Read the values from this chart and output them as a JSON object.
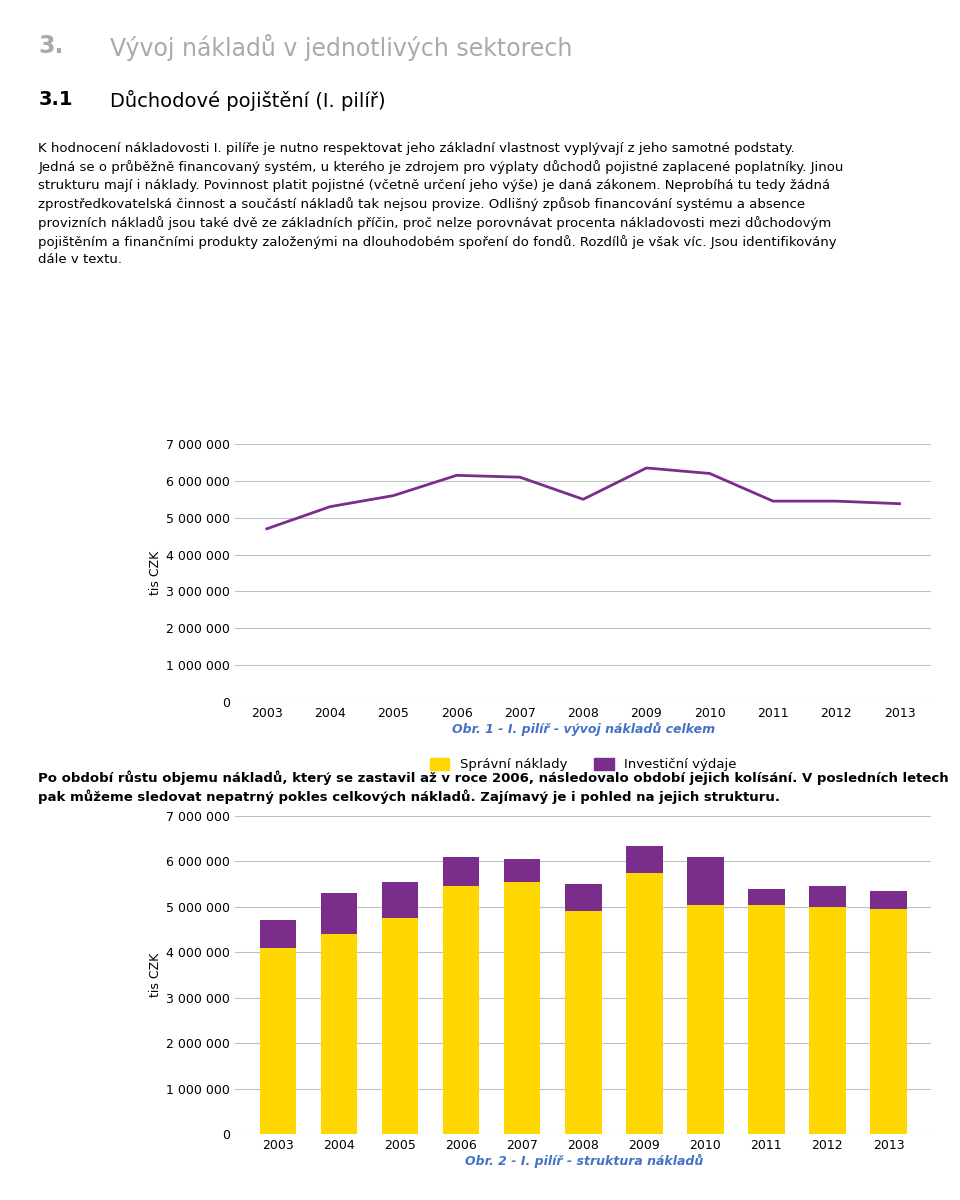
{
  "page_title_num": "3.",
  "page_title_text": "Vývoj nákladů v jednotlivých sektorech",
  "section_num": "3.1",
  "section_text": "Důchodové pojištění (I. pilíř)",
  "paragraph1": "K hodnocení nákladovosti I. pilíře je nutno respektovat jeho základní vlastnost vyplývají z jeho samotné podstaty. Jedná se o průběžně financovaný systém, u kterého je zdrojem pro výplaty důchodů pojistné zaplacené poplatníky. Jinou strukturu mají i náklady. Povinnost platit pojistné (včetně určení jeho výše) je daná zákonem. Neprobíhá tu tedy žádná zprostředkovatelská činnost a součástí nákladů tak nejsou provize. Odlišný způsob financování systému a absence provizních nákladů jsou také dvě ze základních příčin, proč nelze porovnávat procenta nákladovosti mezi důchodovým pojištěním a finančními produkty založenými na dlouhodobém spoření do fondů. Rozdílů je však víc. Jsou identifikovány dále v textu.",
  "paragraph2_line1": "Po období růstu objemu nákladů, který se zastavil až v roce 2006, následovalo období jejich kolísání. V posledních letech",
  "paragraph2_line2": "pak můžeme sledovat nepatrný pokles celkových nákladů. Zajímavý je i pohled na jejich strukturu.",
  "years": [
    2003,
    2004,
    2005,
    2006,
    2007,
    2008,
    2009,
    2010,
    2011,
    2012,
    2013
  ],
  "line_values": [
    4700000,
    5300000,
    5600000,
    6150000,
    6100000,
    5500000,
    6350000,
    6200000,
    5450000,
    5450000,
    5380000
  ],
  "line_color": "#7B2D8B",
  "line_width": 2.0,
  "chart1_ylabel": "tis CZK",
  "chart1_ylim": [
    0,
    7000000
  ],
  "chart1_yticks": [
    0,
    1000000,
    2000000,
    3000000,
    4000000,
    5000000,
    6000000,
    7000000
  ],
  "chart1_caption": "Obr. 1 - I. pilíř - vývoj nákladů celkem",
  "spravni_naklady": [
    4100000,
    4400000,
    4750000,
    5450000,
    5550000,
    4900000,
    5750000,
    5050000,
    5050000,
    5000000,
    4950000
  ],
  "investicni_vydaje": [
    600000,
    900000,
    800000,
    650000,
    500000,
    600000,
    600000,
    1050000,
    350000,
    450000,
    390000
  ],
  "bar_color_yellow": "#FFD700",
  "bar_color_purple": "#7B2D8B",
  "chart2_ylabel": "tis CZK",
  "chart2_ylim": [
    0,
    7000000
  ],
  "chart2_yticks": [
    0,
    1000000,
    2000000,
    3000000,
    4000000,
    5000000,
    6000000,
    7000000
  ],
  "chart2_caption": "Obr. 2 - I. pilíř - struktura nákladů",
  "legend_spravni": "Správní náklady",
  "legend_investicni": "Investiční výdaje",
  "caption_color": "#4472C4",
  "grid_color": "#C0C0C0",
  "bg_color": "#FFFFFF",
  "title_gray": "#AAAAAA",
  "body_fontsize": 9.5,
  "bold_fontsize": 9.5,
  "tick_fontsize": 9,
  "caption_fontsize": 9,
  "ylabel_fontsize": 9,
  "heading1_fontsize": 17,
  "heading2_fontsize": 14
}
